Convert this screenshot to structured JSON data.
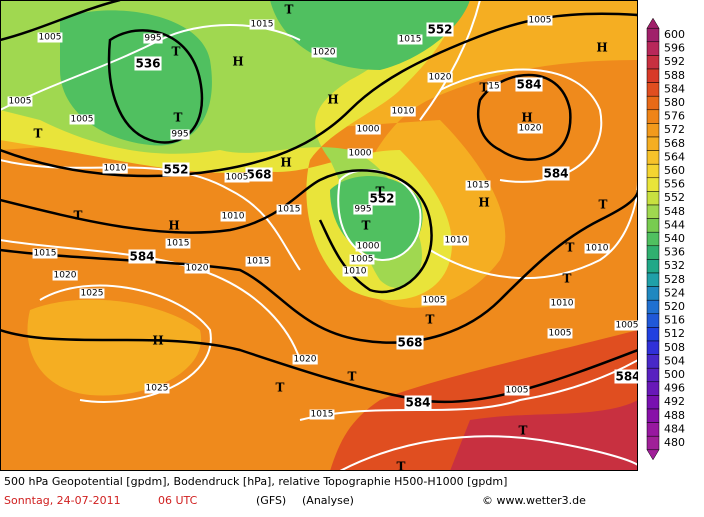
{
  "map": {
    "geopotential_labels": [
      "552",
      "536",
      "552",
      "568",
      "552",
      "584",
      "568",
      "584",
      "584",
      "584",
      "584"
    ],
    "pressure_labels": [
      "1015",
      "995",
      "1005",
      "1020",
      "1015",
      "1005",
      "1020",
      "1005",
      "1005",
      "995",
      "1010",
      "1000",
      "1010",
      "1000",
      "1005",
      "1015",
      "1010",
      "1015",
      "1015",
      "1015",
      "1020",
      "1020",
      "1015",
      "995",
      "1000",
      "1005",
      "1010",
      "1010",
      "1025",
      "1005",
      "1005",
      "1010",
      "1025",
      "1020",
      "1015",
      "1005",
      "1010",
      "1005",
      "1020",
      "15"
    ],
    "highs": [
      "H",
      "H",
      "H",
      "H",
      "H",
      "H",
      "H",
      "H"
    ],
    "lows": [
      "T",
      "T",
      "T",
      "T",
      "T",
      "T",
      "T",
      "T",
      "T",
      "T",
      "T",
      "T",
      "T",
      "T",
      "T",
      "T"
    ]
  },
  "colorbar": {
    "levels": [
      600,
      596,
      592,
      588,
      584,
      580,
      576,
      572,
      568,
      564,
      560,
      556,
      552,
      548,
      544,
      540,
      536,
      532,
      528,
      524,
      520,
      516,
      512,
      508,
      504,
      500,
      496,
      492,
      488,
      484,
      480
    ],
    "colors": [
      "#a0206a",
      "#b8285a",
      "#c83040",
      "#d83a28",
      "#e04e20",
      "#e86a18",
      "#ef8418",
      "#f29a1c",
      "#f5ae22",
      "#f7c22a",
      "#f4d430",
      "#e9e43a",
      "#c8e040",
      "#a0d850",
      "#78cc50",
      "#50c060",
      "#30b070",
      "#20a888",
      "#20a0a8",
      "#2088c0",
      "#2070d0",
      "#2058d8",
      "#2040e0",
      "#3030d8",
      "#4828c8",
      "#5820c0",
      "#6818b8",
      "#7810b0",
      "#8810a8",
      "#9818a0",
      "#a02098"
    ]
  },
  "footer": {
    "title": "500 hPa Geopotential [gpdm], Bodendruck [hPa], relative Topographie H500-H1000 [gpdm]",
    "date": "Sonntag, 24-07-2011",
    "time": "06 UTC",
    "model": "(GFS)",
    "run": "(Analyse)",
    "credit": "© www.wetter3.de"
  }
}
